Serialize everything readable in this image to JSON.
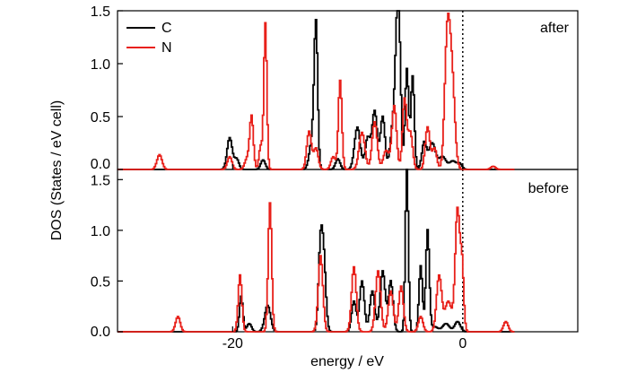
{
  "chart_data": {
    "type": "line",
    "xlabel": "energy / eV",
    "ylabel": "DOS (States / eV cell)",
    "xlim": [
      -30,
      10
    ],
    "x_ticks": [
      -20,
      0
    ],
    "x_tick_labels": [
      "-20",
      "0"
    ],
    "y_ticks": [
      0.0,
      0.5,
      1.0,
      1.5
    ],
    "y_tick_labels": [
      "0.0",
      "0.5",
      "1.0",
      "1.5"
    ],
    "fermi_level": 0,
    "legend": {
      "position": "top-left",
      "entries": [
        {
          "label": "C",
          "color": "#000000"
        },
        {
          "label": "N",
          "color": "#e8201a"
        }
      ]
    },
    "panels": [
      {
        "label": "after",
        "ylim": [
          0,
          1.5
        ],
        "series": [
          {
            "name": "C",
            "color": "#000000",
            "peaks": [
              [
                -20.3,
                0.3,
                0.22
              ],
              [
                -19.7,
                0.1,
                0.2
              ],
              [
                -17.4,
                0.09,
                0.2
              ],
              [
                -13.1,
                0.3,
                0.25
              ],
              [
                -12.8,
                1.27,
                0.15
              ],
              [
                -10.9,
                0.1,
                0.2
              ],
              [
                -9.2,
                0.4,
                0.25
              ],
              [
                -8.3,
                0.3,
                0.22
              ],
              [
                -7.7,
                0.55,
                0.22
              ],
              [
                -7.0,
                0.5,
                0.2
              ],
              [
                -6.2,
                0.3,
                0.2
              ],
              [
                -5.8,
                0.8,
                0.2
              ],
              [
                -5.6,
                1.1,
                0.18
              ],
              [
                -4.9,
                0.95,
                0.15
              ],
              [
                -4.4,
                0.88,
                0.15
              ],
              [
                -3.4,
                0.25,
                0.2
              ],
              [
                -2.7,
                0.25,
                0.3
              ],
              [
                -1.8,
                0.12,
                0.3
              ],
              [
                -0.9,
                0.08,
                0.3
              ],
              [
                -0.3,
                0.05,
                0.2
              ]
            ]
          },
          {
            "name": "N",
            "color": "#e8201a",
            "peaks": [
              [
                -26.4,
                0.14,
                0.22
              ],
              [
                -20.3,
                0.12,
                0.2
              ],
              [
                -18.8,
                0.1,
                0.2
              ],
              [
                -18.4,
                0.5,
                0.16
              ],
              [
                -17.6,
                0.22,
                0.15
              ],
              [
                -17.2,
                1.38,
                0.13
              ],
              [
                -13.4,
                0.36,
                0.2
              ],
              [
                -12.8,
                0.2,
                0.2
              ],
              [
                -11.3,
                0.12,
                0.2
              ],
              [
                -10.7,
                0.84,
                0.15
              ],
              [
                -8.8,
                0.35,
                0.25
              ],
              [
                -7.7,
                0.45,
                0.22
              ],
              [
                -6.7,
                0.18,
                0.25
              ],
              [
                -6.0,
                0.6,
                0.2
              ],
              [
                -5.1,
                0.66,
                0.18
              ],
              [
                -4.6,
                0.35,
                0.2
              ],
              [
                -3.1,
                0.4,
                0.2
              ],
              [
                -2.5,
                0.2,
                0.2
              ],
              [
                -1.4,
                1.15,
                0.22
              ],
              [
                -1.0,
                0.9,
                0.25
              ],
              [
                2.6,
                0.03,
                0.2
              ]
            ]
          }
        ]
      },
      {
        "label": "before",
        "ylim": [
          0,
          1.6
        ],
        "series": [
          {
            "name": "C",
            "color": "#000000",
            "peaks": [
              [
                -19.3,
                0.35,
                0.15
              ],
              [
                -18.6,
                0.08,
                0.2
              ],
              [
                -17.0,
                0.26,
                0.25
              ],
              [
                -12.4,
                0.85,
                0.18
              ],
              [
                -12.1,
                0.6,
                0.18
              ],
              [
                -9.5,
                0.3,
                0.2
              ],
              [
                -8.8,
                0.5,
                0.2
              ],
              [
                -7.9,
                0.4,
                0.22
              ],
              [
                -7.0,
                0.6,
                0.22
              ],
              [
                -6.3,
                0.5,
                0.2
              ],
              [
                -4.9,
                1.6,
                0.13
              ],
              [
                -3.7,
                0.65,
                0.15
              ],
              [
                -3.1,
                1.0,
                0.15
              ],
              [
                -2.5,
                0.05,
                0.3
              ],
              [
                -1.5,
                0.08,
                0.3
              ],
              [
                -0.5,
                0.1,
                0.25
              ]
            ]
          },
          {
            "name": "N",
            "color": "#e8201a",
            "peaks": [
              [
                -24.8,
                0.15,
                0.2
              ],
              [
                -19.4,
                0.56,
                0.16
              ],
              [
                -16.8,
                1.27,
                0.15
              ],
              [
                -12.4,
                0.75,
                0.2
              ],
              [
                -9.5,
                0.64,
                0.2
              ],
              [
                -7.4,
                0.6,
                0.22
              ],
              [
                -6.3,
                0.4,
                0.22
              ],
              [
                -5.4,
                0.45,
                0.2
              ],
              [
                -3.7,
                0.15,
                0.2
              ],
              [
                -2.1,
                0.55,
                0.22
              ],
              [
                -1.3,
                0.3,
                0.3
              ],
              [
                -0.5,
                1.2,
                0.2
              ],
              [
                -0.1,
                0.6,
                0.15
              ],
              [
                3.7,
                0.1,
                0.2
              ]
            ]
          }
        ]
      }
    ]
  }
}
